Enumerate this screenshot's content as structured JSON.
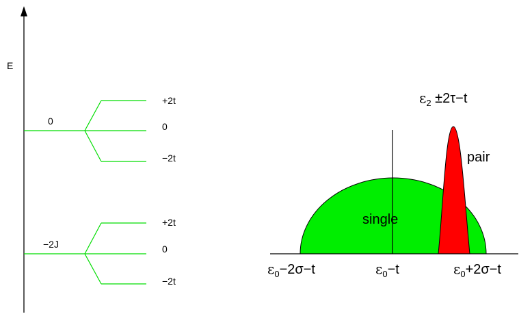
{
  "energy_diagram": {
    "axis_label": "E",
    "upper_level": {
      "label": "0",
      "splits": [
        "+2t",
        "0",
        "−2t"
      ]
    },
    "lower_level": {
      "label": "−2J",
      "splits": [
        "+2t",
        "0",
        "−2t"
      ]
    },
    "line_color": "#00dd00"
  },
  "band_diagram": {
    "single_label": "single",
    "pair_label": "pair",
    "pair_position_label": {
      "eps": "ε",
      "sub": "2",
      "rest": " ±2τ−t"
    },
    "axis_labels": [
      {
        "eps": "ε",
        "sub": "0",
        "rest": "−2σ−t"
      },
      {
        "eps": "ε",
        "sub": "0",
        "rest": "−t"
      },
      {
        "eps": "ε",
        "sub": "0",
        "rest": "+2σ−t"
      }
    ],
    "single_color": "#00ee00",
    "pair_color": "#ff0000"
  }
}
